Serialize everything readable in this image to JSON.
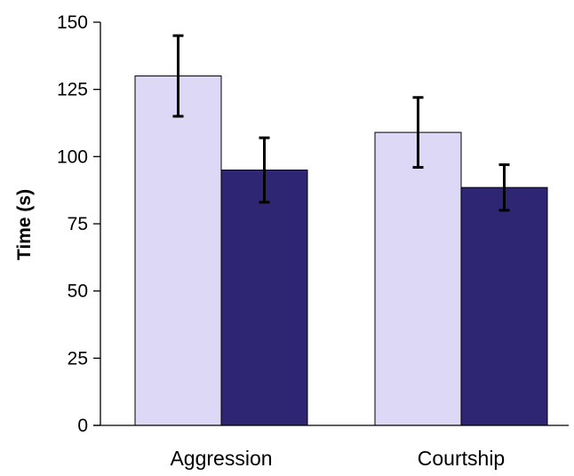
{
  "chart_data": {
    "type": "bar",
    "title": "",
    "xlabel": "",
    "ylabel": "Time (s)",
    "ylim": [
      0,
      150
    ],
    "yticks": [
      0,
      25,
      50,
      75,
      100,
      125,
      150
    ],
    "grid": false,
    "legend": "none",
    "categories": [
      "Aggression",
      "Courtship"
    ],
    "series": [
      {
        "values": [
          130,
          109
        ],
        "errors": [
          15,
          13
        ],
        "color": "#dcd8f5"
      },
      {
        "values": [
          95,
          88.5
        ],
        "errors": [
          12,
          8.5
        ],
        "color": "#2e2672"
      }
    ]
  }
}
